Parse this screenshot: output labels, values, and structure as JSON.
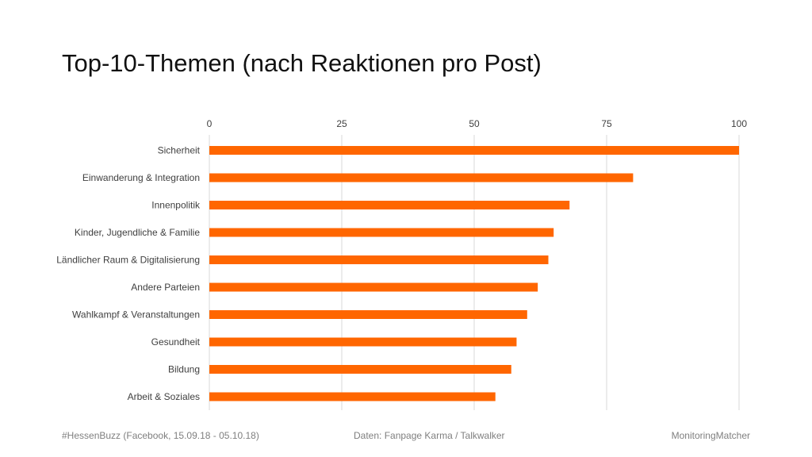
{
  "slide": {
    "title": "Top-10-Themen (nach Reaktionen pro Post)"
  },
  "footer": {
    "left": "#HessenBuzz (Facebook, 15.09.18 - 05.10.18)",
    "center": "Daten: Fanpage Karma / Talkwalker",
    "right": "MonitoringMatcher"
  },
  "colors": {
    "bar": "#FF6600",
    "grid": "#D9D9D9",
    "text": "#404040"
  },
  "chart_data": {
    "type": "bar",
    "orientation": "horizontal",
    "title": "Top-10-Themen (nach Reaktionen pro Post)",
    "xlim": [
      0,
      100
    ],
    "ticks": [
      0,
      25,
      50,
      75,
      100
    ],
    "axis_position": "top",
    "grid": true,
    "legend": "none",
    "categories": [
      "Sicherheit",
      "Einwanderung & Integration",
      "Innenpolitik",
      "Kinder, Jugendliche & Familie",
      "Ländlicher Raum & Digitalisierung",
      "Andere Parteien",
      "Wahlkampf & Veranstaltungen",
      "Gesundheit",
      "Bildung",
      "Arbeit & Soziales"
    ],
    "values": [
      100,
      80,
      68,
      65,
      64,
      62,
      60,
      58,
      57,
      54
    ]
  }
}
